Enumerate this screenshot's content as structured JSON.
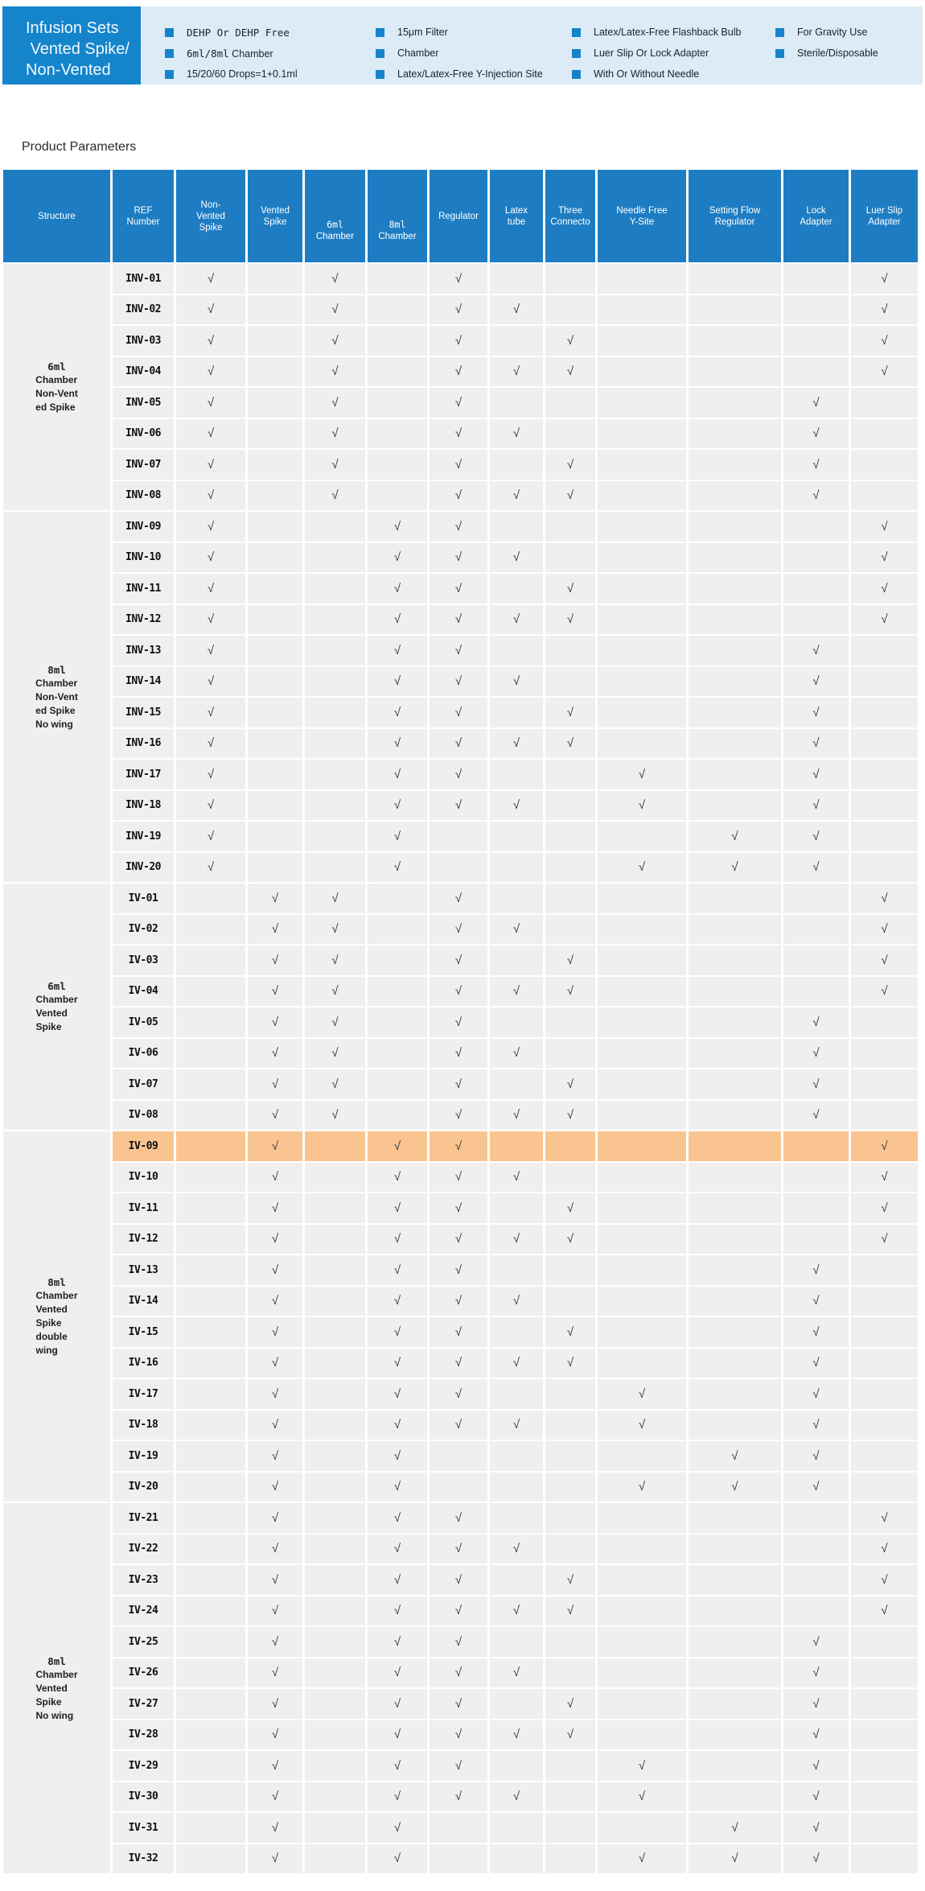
{
  "colors": {
    "banner_blue": "#1484cb",
    "banner_bg": "#dcebf5",
    "header_blue": "#1e7dc2",
    "row_bg": "#f0efee",
    "highlight": "#f9c490"
  },
  "banner": {
    "title_lines": [
      "Infusion Sets",
      " Vented Spike/",
      "Non-Vented"
    ],
    "feature_columns": [
      [
        "DEHP Or DEHP Free",
        "6ml/8ml Chamber",
        "15/20/60 Drops=1+0.1ml"
      ],
      [
        "15μm Filter",
        "Chamber",
        "Latex/Latex-Free Y-Injection Site"
      ],
      [
        "Latex/Latex-Free Flashback Bulb",
        "Luer Slip Or Lock Adapter",
        "With Or Without Needle"
      ],
      [
        "For Gravity Use",
        "Sterile/Disposable"
      ]
    ]
  },
  "section_title": "Product Parameters",
  "table": {
    "check_glyph": "√",
    "columns": [
      {
        "key": "structure",
        "label": "Structure"
      },
      {
        "key": "ref",
        "label": "REF\nNumber"
      },
      {
        "key": "non_vented",
        "label": "Non-\nVented\nSpike"
      },
      {
        "key": "vented",
        "label": "Vented\nSpike"
      },
      {
        "key": "c6",
        "label": "6ml\nChamber"
      },
      {
        "key": "c8",
        "label": "8ml\nChamber"
      },
      {
        "key": "regulator",
        "label": "Regulator"
      },
      {
        "key": "latex",
        "label": "Latex\ntube"
      },
      {
        "key": "three",
        "label": "Three\nConnecto"
      },
      {
        "key": "needle_free",
        "label": "Needle Free\nY-Site"
      },
      {
        "key": "flow",
        "label": "Setting Flow\nRegulator"
      },
      {
        "key": "lock",
        "label": "Lock\nAdapter"
      },
      {
        "key": "luer",
        "label": "Luer Slip\nAdapter"
      }
    ],
    "groups": [
      {
        "structure_lines": [
          "6ml",
          "Chamber",
          "Non-Vent",
          "ed Spike"
        ],
        "rows": [
          {
            "ref": "INV-01",
            "checks": [
              "non_vented",
              "c6",
              "regulator",
              "luer"
            ]
          },
          {
            "ref": "INV-02",
            "checks": [
              "non_vented",
              "c6",
              "regulator",
              "latex",
              "luer"
            ]
          },
          {
            "ref": "INV-03",
            "checks": [
              "non_vented",
              "c6",
              "regulator",
              "three",
              "luer"
            ]
          },
          {
            "ref": "INV-04",
            "checks": [
              "non_vented",
              "c6",
              "regulator",
              "latex",
              "three",
              "luer"
            ]
          },
          {
            "ref": "INV-05",
            "checks": [
              "non_vented",
              "c6",
              "regulator",
              "lock"
            ]
          },
          {
            "ref": "INV-06",
            "checks": [
              "non_vented",
              "c6",
              "regulator",
              "latex",
              "lock"
            ]
          },
          {
            "ref": "INV-07",
            "checks": [
              "non_vented",
              "c6",
              "regulator",
              "three",
              "lock"
            ]
          },
          {
            "ref": "INV-08",
            "checks": [
              "non_vented",
              "c6",
              "regulator",
              "latex",
              "three",
              "lock"
            ]
          }
        ]
      },
      {
        "structure_lines": [
          "8ml",
          "Chamber",
          "Non-Vent",
          "ed Spike",
          "No wing"
        ],
        "rows": [
          {
            "ref": "INV-09",
            "checks": [
              "non_vented",
              "c8",
              "regulator",
              "luer"
            ]
          },
          {
            "ref": "INV-10",
            "checks": [
              "non_vented",
              "c8",
              "regulator",
              "latex",
              "luer"
            ]
          },
          {
            "ref": "INV-11",
            "checks": [
              "non_vented",
              "c8",
              "regulator",
              "three",
              "luer"
            ]
          },
          {
            "ref": "INV-12",
            "checks": [
              "non_vented",
              "c8",
              "regulator",
              "latex",
              "three",
              "luer"
            ]
          },
          {
            "ref": "INV-13",
            "checks": [
              "non_vented",
              "c8",
              "regulator",
              "lock"
            ]
          },
          {
            "ref": "INV-14",
            "checks": [
              "non_vented",
              "c8",
              "regulator",
              "latex",
              "lock"
            ]
          },
          {
            "ref": "INV-15",
            "checks": [
              "non_vented",
              "c8",
              "regulator",
              "three",
              "lock"
            ]
          },
          {
            "ref": "INV-16",
            "checks": [
              "non_vented",
              "c8",
              "regulator",
              "latex",
              "three",
              "lock"
            ]
          },
          {
            "ref": "INV-17",
            "checks": [
              "non_vented",
              "c8",
              "regulator",
              "needle_free",
              "lock"
            ]
          },
          {
            "ref": "INV-18",
            "checks": [
              "non_vented",
              "c8",
              "regulator",
              "latex",
              "needle_free",
              "lock"
            ]
          },
          {
            "ref": "INV-19",
            "checks": [
              "non_vented",
              "c8",
              "flow",
              "lock"
            ]
          },
          {
            "ref": "INV-20",
            "checks": [
              "non_vented",
              "c8",
              "needle_free",
              "flow",
              "lock"
            ]
          }
        ]
      },
      {
        "structure_lines": [
          "6ml",
          "Chamber",
          "Vented",
          "Spike"
        ],
        "rows": [
          {
            "ref": "IV-01",
            "checks": [
              "vented",
              "c6",
              "regulator",
              "luer"
            ]
          },
          {
            "ref": "IV-02",
            "checks": [
              "vented",
              "c6",
              "regulator",
              "latex",
              "luer"
            ]
          },
          {
            "ref": "IV-03",
            "checks": [
              "vented",
              "c6",
              "regulator",
              "three",
              "luer"
            ]
          },
          {
            "ref": "IV-04",
            "checks": [
              "vented",
              "c6",
              "regulator",
              "latex",
              "three",
              "luer"
            ]
          },
          {
            "ref": "IV-05",
            "checks": [
              "vented",
              "c6",
              "regulator",
              "lock"
            ]
          },
          {
            "ref": "IV-06",
            "checks": [
              "vented",
              "c6",
              "regulator",
              "latex",
              "lock"
            ]
          },
          {
            "ref": "IV-07",
            "checks": [
              "vented",
              "c6",
              "regulator",
              "three",
              "lock"
            ]
          },
          {
            "ref": "IV-08",
            "checks": [
              "vented",
              "c6",
              "regulator",
              "latex",
              "three",
              "lock"
            ]
          }
        ]
      },
      {
        "structure_lines": [
          "8ml",
          "Chamber",
          "Vented",
          "Spike",
          "double",
          "wing"
        ],
        "rows": [
          {
            "ref": "IV-09",
            "highlight": true,
            "checks": [
              "vented",
              "c8",
              "regulator",
              "luer"
            ]
          },
          {
            "ref": "IV-10",
            "checks": [
              "vented",
              "c8",
              "regulator",
              "latex",
              "luer"
            ]
          },
          {
            "ref": "IV-11",
            "checks": [
              "vented",
              "c8",
              "regulator",
              "three",
              "luer"
            ]
          },
          {
            "ref": "IV-12",
            "checks": [
              "vented",
              "c8",
              "regulator",
              "latex",
              "three",
              "luer"
            ]
          },
          {
            "ref": "IV-13",
            "checks": [
              "vented",
              "c8",
              "regulator",
              "lock"
            ]
          },
          {
            "ref": "IV-14",
            "checks": [
              "vented",
              "c8",
              "regulator",
              "latex",
              "lock"
            ]
          },
          {
            "ref": "IV-15",
            "checks": [
              "vented",
              "c8",
              "regulator",
              "three",
              "lock"
            ]
          },
          {
            "ref": "IV-16",
            "checks": [
              "vented",
              "c8",
              "regulator",
              "latex",
              "three",
              "lock"
            ]
          },
          {
            "ref": "IV-17",
            "checks": [
              "vented",
              "c8",
              "regulator",
              "needle_free",
              "lock"
            ]
          },
          {
            "ref": "IV-18",
            "checks": [
              "vented",
              "c8",
              "regulator",
              "latex",
              "needle_free",
              "lock"
            ]
          },
          {
            "ref": "IV-19",
            "checks": [
              "vented",
              "c8",
              "flow",
              "lock"
            ]
          },
          {
            "ref": "IV-20",
            "checks": [
              "vented",
              "c8",
              "needle_free",
              "flow",
              "lock"
            ]
          }
        ]
      },
      {
        "structure_lines": [
          "8ml",
          "Chamber",
          "Vented",
          "Spike",
          "No wing"
        ],
        "rows": [
          {
            "ref": "IV-21",
            "checks": [
              "vented",
              "c8",
              "regulator",
              "luer"
            ]
          },
          {
            "ref": "IV-22",
            "checks": [
              "vented",
              "c8",
              "regulator",
              "latex",
              "luer"
            ]
          },
          {
            "ref": "IV-23",
            "checks": [
              "vented",
              "c8",
              "regulator",
              "three",
              "luer"
            ]
          },
          {
            "ref": "IV-24",
            "checks": [
              "vented",
              "c8",
              "regulator",
              "latex",
              "three",
              "luer"
            ]
          },
          {
            "ref": "IV-25",
            "checks": [
              "vented",
              "c8",
              "regulator",
              "lock"
            ]
          },
          {
            "ref": "IV-26",
            "checks": [
              "vented",
              "c8",
              "regulator",
              "latex",
              "lock"
            ]
          },
          {
            "ref": "IV-27",
            "checks": [
              "vented",
              "c8",
              "regulator",
              "three",
              "lock"
            ]
          },
          {
            "ref": "IV-28",
            "checks": [
              "vented",
              "c8",
              "regulator",
              "latex",
              "three",
              "lock"
            ]
          },
          {
            "ref": "IV-29",
            "checks": [
              "vented",
              "c8",
              "regulator",
              "needle_free",
              "lock"
            ]
          },
          {
            "ref": "IV-30",
            "checks": [
              "vented",
              "c8",
              "regulator",
              "latex",
              "needle_free",
              "lock"
            ]
          },
          {
            "ref": "IV-31",
            "checks": [
              "vented",
              "c8",
              "flow",
              "lock"
            ]
          },
          {
            "ref": "IV-32",
            "checks": [
              "vented",
              "c8",
              "needle_free",
              "flow",
              "lock"
            ]
          }
        ]
      }
    ]
  }
}
